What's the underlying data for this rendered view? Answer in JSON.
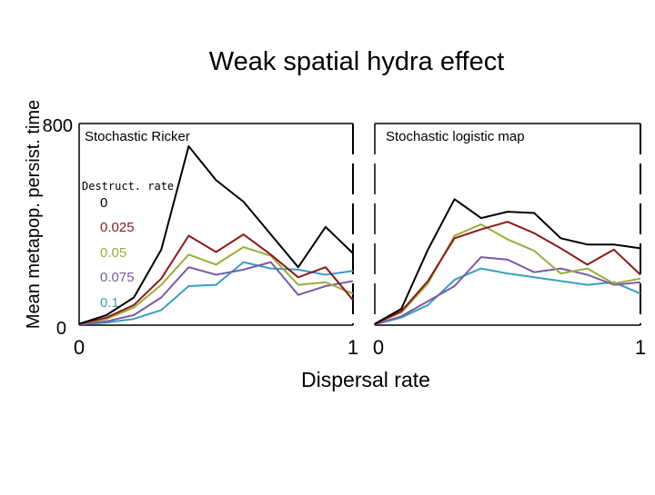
{
  "figure": {
    "title": "Weak spatial hydra effect",
    "ylabel": "Mean metapop. persist. time",
    "xlabel": "Dispersal rate"
  },
  "legend": {
    "title": "Destruct. rate",
    "entries": [
      "0",
      "0.025",
      "0.05",
      "0.075",
      "0.1"
    ]
  },
  "series_colors": [
    "#000000",
    "#8b1a1a",
    "#9aae3a",
    "#7b5ba6",
    "#3a9fc4"
  ],
  "chart_data": [
    {
      "type": "line",
      "title": "Stochastic Ricker",
      "xlabel": "Dispersal rate",
      "ylabel": "Mean metapop. persist. time",
      "xlim": [
        0,
        1
      ],
      "ylim": [
        0,
        800
      ],
      "x_ticks": [
        "0",
        "1"
      ],
      "y_ticks": [
        "0",
        "800"
      ],
      "x": [
        0,
        0.1,
        0.2,
        0.3,
        0.4,
        0.5,
        0.6,
        0.7,
        0.8,
        0.9,
        1.0
      ],
      "series": [
        {
          "name": "0",
          "values": [
            5,
            40,
            110,
            300,
            710,
            575,
            490,
            360,
            230,
            390,
            285
          ]
        },
        {
          "name": "0.025",
          "values": [
            5,
            30,
            80,
            185,
            355,
            290,
            360,
            280,
            190,
            230,
            100
          ]
        },
        {
          "name": "0.05",
          "values": [
            5,
            25,
            70,
            160,
            280,
            240,
            310,
            275,
            160,
            170,
            125
          ]
        },
        {
          "name": "0.075",
          "values": [
            3,
            15,
            40,
            110,
            230,
            200,
            220,
            250,
            120,
            155,
            175
          ]
        },
        {
          "name": "0.1",
          "values": [
            3,
            10,
            25,
            60,
            155,
            160,
            250,
            225,
            220,
            200,
            215
          ]
        }
      ]
    },
    {
      "type": "line",
      "title": "Stochastic logistic map",
      "xlabel": "Dispersal rate",
      "ylabel": "",
      "xlim": [
        0,
        1
      ],
      "ylim": [
        0,
        800
      ],
      "x_ticks": [
        "0",
        "1"
      ],
      "y_ticks": [],
      "x": [
        0,
        0.1,
        0.2,
        0.3,
        0.4,
        0.5,
        0.6,
        0.7,
        0.8,
        0.9,
        1.0
      ],
      "series": [
        {
          "name": "0",
          "values": [
            5,
            65,
            300,
            500,
            425,
            450,
            445,
            345,
            320,
            320,
            305
          ]
        },
        {
          "name": "0.025",
          "values": [
            5,
            55,
            175,
            345,
            380,
            410,
            365,
            305,
            240,
            300,
            200
          ]
        },
        {
          "name": "0.05",
          "values": [
            5,
            50,
            165,
            355,
            400,
            340,
            295,
            205,
            225,
            165,
            185
          ]
        },
        {
          "name": "0.075",
          "values": [
            3,
            35,
            95,
            155,
            270,
            260,
            210,
            225,
            200,
            160,
            170
          ]
        },
        {
          "name": "0.1",
          "values": [
            3,
            30,
            80,
            180,
            225,
            205,
            190,
            175,
            160,
            170,
            125
          ]
        }
      ]
    }
  ]
}
